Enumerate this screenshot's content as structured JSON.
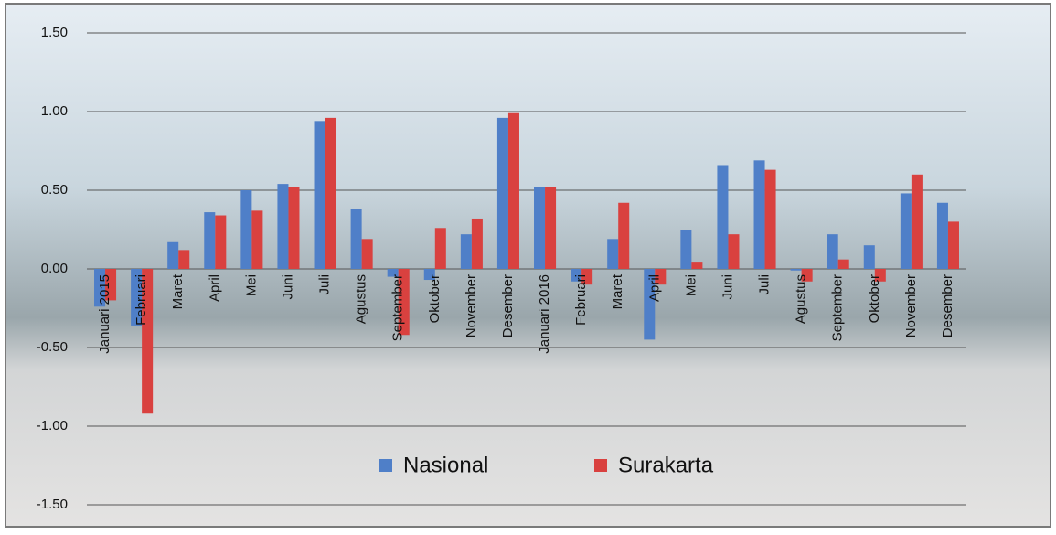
{
  "chart_data": {
    "type": "bar",
    "categories": [
      "Januari 2015",
      "Februari",
      "Maret",
      "April",
      "Mei",
      "Juni",
      "Juli",
      "Agustus",
      "September",
      "Oktober",
      "November",
      "Desember",
      "Januari 2016",
      "Februari",
      "Maret",
      "April",
      "Mei",
      "Juni",
      "Juli",
      "Agustus",
      "September",
      "Oktober",
      "November",
      "Desember"
    ],
    "series": [
      {
        "name": "Nasional",
        "color": "#4f7fc8",
        "values": [
          -0.24,
          -0.36,
          0.17,
          0.36,
          0.5,
          0.54,
          0.94,
          0.38,
          -0.05,
          -0.07,
          0.22,
          0.96,
          0.52,
          -0.08,
          0.19,
          -0.45,
          0.25,
          0.66,
          0.69,
          -0.01,
          0.22,
          0.15,
          0.48,
          0.42
        ]
      },
      {
        "name": "Surakarta",
        "color": "#d9413f",
        "values": [
          -0.2,
          -0.92,
          0.12,
          0.34,
          0.37,
          0.52,
          0.96,
          0.19,
          -0.42,
          0.26,
          0.32,
          0.99,
          0.52,
          -0.1,
          0.42,
          -0.1,
          0.04,
          0.22,
          0.63,
          -0.08,
          0.06,
          -0.08,
          0.6,
          0.3
        ]
      }
    ],
    "ylim": [
      -1.5,
      1.5
    ],
    "yticks": [
      {
        "value": -1.5,
        "label": "-1.50"
      },
      {
        "value": -1.0,
        "label": "-1.00"
      },
      {
        "value": -0.5,
        "label": "-0.50"
      },
      {
        "value": 0,
        "label": "0.00"
      },
      {
        "value": 0.5,
        "label": "0.50"
      },
      {
        "value": 1.0,
        "label": "1.00"
      },
      {
        "value": 1.5,
        "label": "1.50"
      }
    ],
    "grid": true,
    "legend": "bottom"
  }
}
